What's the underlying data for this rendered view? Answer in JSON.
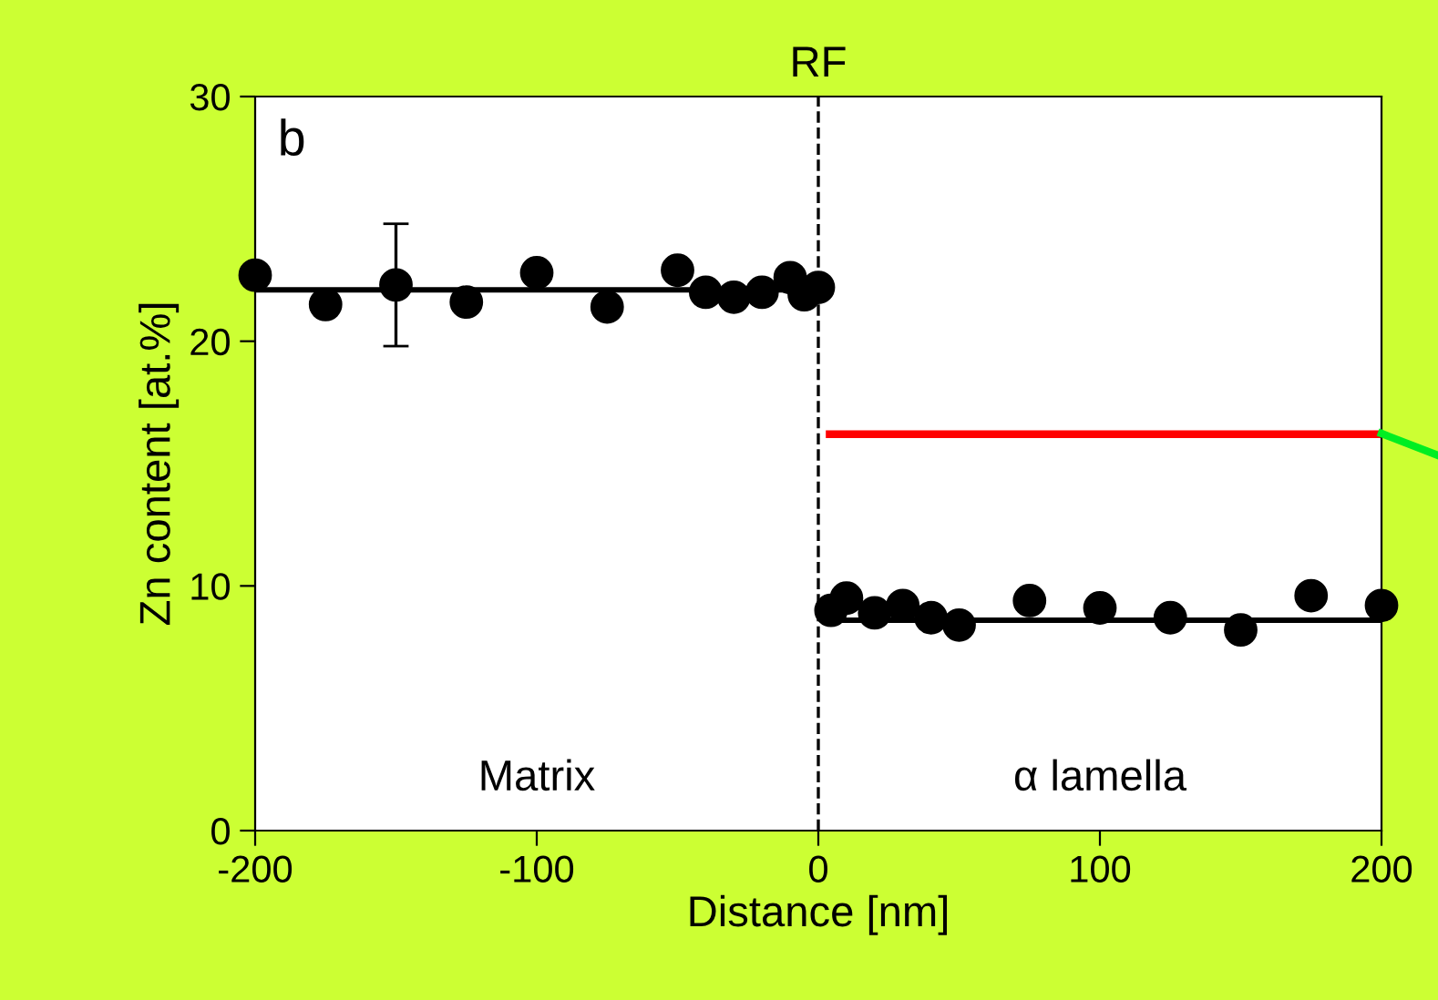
{
  "chart_data": {
    "type": "scatter",
    "xlabel": "Distance [nm]",
    "ylabel": "Zn content [at.%]",
    "xlim": [
      -200,
      200
    ],
    "xticks": [
      -200,
      -100,
      0,
      100,
      200
    ],
    "ylim": [
      0,
      30
    ],
    "yticks": [
      0,
      10,
      20,
      30
    ],
    "grid": false,
    "legend": false,
    "series": [
      {
        "marker": "circle",
        "color": "#000000",
        "x": [
          -200,
          -175,
          -150,
          -125,
          -100,
          -75,
          -50,
          -40,
          -30,
          -20,
          -10,
          -5,
          0,
          4.5,
          10,
          20,
          30,
          40,
          50,
          75,
          100,
          125,
          150,
          175,
          200
        ],
        "values": [
          22.7,
          21.5,
          22.3,
          21.6,
          22.8,
          21.4,
          22.9,
          22.0,
          21.8,
          22.0,
          22.6,
          21.9,
          22.2,
          9.0,
          9.5,
          8.9,
          9.2,
          8.7,
          8.4,
          9.4,
          9.1,
          8.7,
          8.2,
          9.6,
          9.2
        ],
        "errors": [
          null,
          null,
          2.5,
          null,
          null,
          null,
          null,
          null,
          null,
          null,
          null,
          null,
          null,
          null,
          null,
          null,
          null,
          null,
          null,
          null,
          null,
          null,
          null,
          null,
          null
        ]
      },
      {
        "type": "line",
        "color": "#000000",
        "x": [
          -200,
          0
        ],
        "values": [
          22.1,
          22.1
        ]
      },
      {
        "type": "line",
        "color": "#000000",
        "x": [
          4,
          200
        ],
        "values": [
          8.6,
          8.6
        ]
      },
      {
        "type": "line",
        "color": "#ff0000",
        "x": [
          4,
          200
        ],
        "values": [
          16.2,
          16.2
        ]
      }
    ],
    "ref_lines": [
      {
        "axis": "x",
        "value": 0,
        "label": "RF",
        "color": "#000000",
        "line_style": "dashed"
      }
    ],
    "annotations": [
      "b",
      "Matrix",
      "α lamella"
    ]
  }
}
